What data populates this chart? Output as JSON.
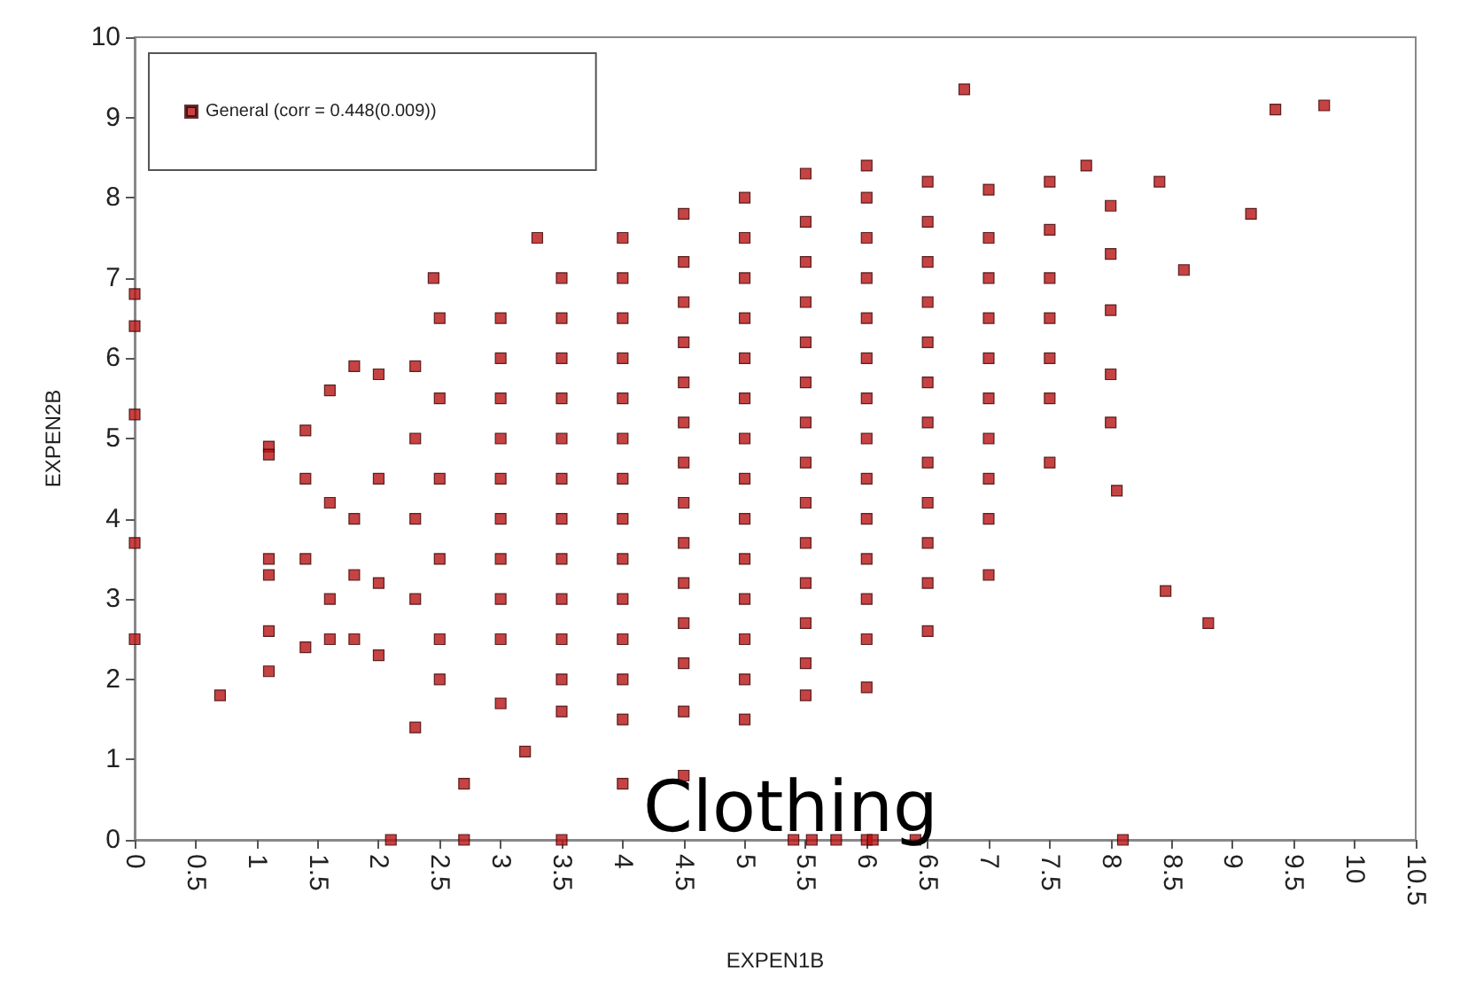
{
  "chart_data": {
    "type": "scatter",
    "xlabel": "EXPEN1B",
    "ylabel": "EXPEN2B",
    "annotations": [
      "Clothing"
    ],
    "legend": "top left",
    "grid": false,
    "marker": "square",
    "xlim": [
      0,
      10.5
    ],
    "ylim": [
      0,
      10
    ],
    "xticks": [
      0,
      0.5,
      1,
      1.5,
      2,
      2.5,
      3,
      3.5,
      4,
      4.5,
      5,
      5.5,
      6,
      6.5,
      7,
      7.5,
      8,
      8.5,
      9,
      9.5,
      10,
      10.5
    ],
    "yticks": [
      0,
      1,
      2,
      3,
      4,
      5,
      6,
      7,
      8,
      9,
      10
    ],
    "series": [
      {
        "name": "General (corr = 0.448(0.009))",
        "color": "#b81414",
        "x": [
          0,
          0,
          0,
          0,
          0,
          0.7,
          1.1,
          1.1,
          1.1,
          1.1,
          1.1,
          1.1,
          1.4,
          1.4,
          1.4,
          1.4,
          1.6,
          1.6,
          1.6,
          1.6,
          1.8,
          1.8,
          1.8,
          1.8,
          2,
          2,
          2,
          2,
          2.3,
          2.3,
          2.3,
          2.3,
          2.3,
          2.1,
          2.7,
          3.5,
          5.4,
          5.55,
          5.75,
          6,
          6.05,
          6.4,
          8.1,
          2.7,
          3.2,
          4,
          4.5,
          6.8,
          9.35,
          9.75,
          9.15,
          8.45,
          8.8,
          8.05,
          2.45,
          3.3,
          8.6,
          8.4,
          7.8,
          2.5,
          2.5,
          2.5,
          2.5,
          2.5,
          2.5,
          3,
          3,
          3,
          3,
          3,
          3,
          3,
          3,
          3,
          3,
          3.5,
          3.5,
          3.5,
          3.5,
          3.5,
          3.5,
          3.5,
          3.5,
          3.5,
          3.5,
          3.5,
          3.5,
          4,
          4,
          4,
          4,
          4,
          4,
          4,
          4,
          4,
          4,
          4,
          4,
          4,
          4.5,
          4.5,
          4.5,
          4.5,
          4.5,
          4.5,
          4.5,
          4.5,
          4.5,
          4.5,
          4.5,
          4.5,
          4.5,
          5,
          5,
          5,
          5,
          5,
          5,
          5,
          5,
          5,
          5,
          5,
          5,
          5,
          5,
          5.5,
          5.5,
          5.5,
          5.5,
          5.5,
          5.5,
          5.5,
          5.5,
          5.5,
          5.5,
          5.5,
          5.5,
          5.5,
          5.5,
          6,
          6,
          6,
          6,
          6,
          6,
          6,
          6,
          6,
          6,
          6,
          6,
          6,
          6,
          6.5,
          6.5,
          6.5,
          6.5,
          6.5,
          6.5,
          6.5,
          6.5,
          6.5,
          6.5,
          6.5,
          6.5,
          7,
          7,
          7,
          7,
          7,
          7,
          7,
          7,
          7,
          7,
          7.5,
          7.5,
          7.5,
          7.5,
          7.5,
          7.5,
          7.5,
          8,
          8,
          8,
          8,
          8
        ],
        "values": [
          6.8,
          6.4,
          5.3,
          3.7,
          2.5,
          1.8,
          4.9,
          4.8,
          3.5,
          3.3,
          2.6,
          2.1,
          5.1,
          4.5,
          3.5,
          2.4,
          5.6,
          4.2,
          3,
          2.5,
          5.9,
          4,
          3.3,
          2.5,
          5.8,
          4.5,
          3.2,
          2.3,
          5.9,
          5,
          4,
          3,
          1.4,
          0,
          0,
          0,
          0,
          0,
          0,
          0,
          0,
          0,
          0,
          0.7,
          1.1,
          0.7,
          0.8,
          9.35,
          9.1,
          9.15,
          7.8,
          3.1,
          2.7,
          4.35,
          7,
          7.5,
          7.1,
          8.2,
          8.4,
          6.5,
          5.5,
          4.5,
          3.5,
          2.5,
          2,
          6.5,
          6,
          5.5,
          5,
          4.5,
          4,
          3.5,
          3,
          2.5,
          1.7,
          7,
          6.5,
          6,
          5.5,
          5,
          4.5,
          4,
          3.5,
          3,
          2.5,
          2,
          1.6,
          7.5,
          7,
          6.5,
          6,
          5.5,
          5,
          4.5,
          4,
          3.5,
          3,
          2.5,
          2,
          1.5,
          7.8,
          7.2,
          6.7,
          6.2,
          5.7,
          5.2,
          4.7,
          4.2,
          3.7,
          3.2,
          2.7,
          2.2,
          1.6,
          8,
          7.5,
          7,
          6.5,
          6,
          5.5,
          5,
          4.5,
          4,
          3.5,
          3,
          2.5,
          2,
          1.5,
          8.3,
          7.7,
          7.2,
          6.7,
          6.2,
          5.7,
          5.2,
          4.7,
          4.2,
          3.7,
          3.2,
          2.7,
          2.2,
          1.8,
          8.4,
          8,
          7.5,
          7,
          6.5,
          6,
          5.5,
          5,
          4.5,
          4,
          3.5,
          3,
          2.5,
          1.9,
          8.2,
          7.7,
          7.2,
          6.7,
          6.2,
          5.7,
          5.2,
          4.7,
          4.2,
          3.7,
          3.2,
          2.6,
          8.1,
          7.5,
          7,
          6.5,
          6,
          5.5,
          5,
          4.5,
          4,
          3.3,
          8.2,
          7.6,
          7,
          6.5,
          6,
          5.5,
          4.7,
          7.9,
          7.3,
          6.6,
          5.8,
          5.2
        ]
      }
    ]
  }
}
